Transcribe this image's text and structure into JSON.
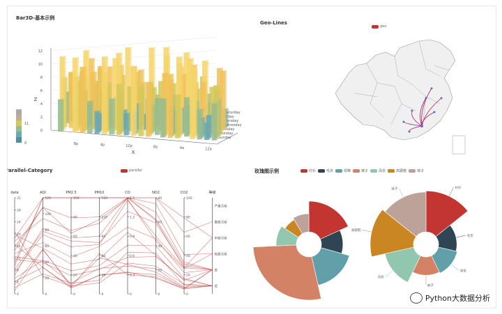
{
  "chart_data": [
    {
      "type": "bar3d",
      "title": "Bar3D-基本示例",
      "xlabel": "X",
      "zlabel": "Z",
      "x_ticks": [
        "8p",
        "4p",
        "12p",
        "8a",
        "4a",
        "12a"
      ],
      "z_ticks": [
        "0",
        "2",
        "4",
        "6",
        "8",
        "10",
        "12"
      ],
      "days": [
        "Sunday",
        "Monday",
        "Tuesday",
        "Wednesday",
        "Thursday",
        "Friday",
        "Saturday"
      ],
      "visual_map": {
        "max_label": "11",
        "min_label": "0",
        "colors": [
          "#f5d56b",
          "#f0c25a",
          "#d6c75b",
          "#97bc8f",
          "#6aa9b0",
          "#4f8fa3"
        ]
      },
      "grid": true
    },
    {
      "type": "geo-lines",
      "title": "Geo-Lines",
      "series_name": "geo",
      "series_color": "#c23531",
      "line_color": "#a31f5e",
      "point_color": "#5c6cc6"
    },
    {
      "type": "parallel",
      "title": "Parallel-Category",
      "series_name": "parallel",
      "series_color": "#c23531",
      "axes": [
        {
          "name": "data",
          "min": 0,
          "max": 31,
          "ticks": [
            "0",
            "4",
            "8",
            "12",
            "16",
            "20",
            "24",
            "28",
            "31"
          ]
        },
        {
          "name": "AQI",
          "min": 0,
          "max": 120,
          "ticks": [
            "0",
            "20",
            "40",
            "60",
            "80",
            "100",
            "120"
          ]
        },
        {
          "name": "PM2.5",
          "min": 0,
          "max": 100,
          "ticks": [
            "0",
            "20",
            "40",
            "60",
            "80",
            "100"
          ]
        },
        {
          "name": "PM10",
          "min": 0,
          "max": 150,
          "ticks": [
            "0",
            "30",
            "60",
            "90",
            "120",
            "150"
          ]
        },
        {
          "name": "CO",
          "min": 0,
          "max": 1.5,
          "ticks": [
            "0",
            "0.3",
            "0.6",
            "0.9",
            "1.2",
            "1.5"
          ]
        },
        {
          "name": "NO2",
          "min": 0,
          "max": 80,
          "ticks": [
            "0",
            "20",
            "40",
            "60",
            "80"
          ]
        },
        {
          "name": "CO2",
          "min": 0,
          "max": 100,
          "ticks": [
            "0",
            "20",
            "40",
            "60",
            "80",
            "100"
          ]
        },
        {
          "name": "等级",
          "categories": [
            "优",
            "良",
            "轻度污染",
            "中度污染",
            "重度污染",
            "严重污染"
          ]
        }
      ],
      "lines": [
        [
          1,
          55,
          9,
          56,
          0.46,
          18,
          6,
          "良"
        ],
        [
          2,
          25,
          11,
          21,
          0.65,
          34,
          9,
          "优"
        ],
        [
          3,
          56,
          7,
          63,
          0.3,
          14,
          5,
          "良"
        ],
        [
          4,
          33,
          7,
          29,
          0.33,
          16,
          6,
          "优"
        ],
        [
          5,
          42,
          24,
          44,
          0.76,
          40,
          16,
          "优"
        ],
        [
          6,
          82,
          58,
          90,
          1.77,
          68,
          33,
          "良"
        ],
        [
          7,
          74,
          49,
          77,
          1.46,
          48,
          27,
          "良"
        ],
        [
          8,
          78,
          55,
          80,
          1.29,
          59,
          29,
          "良"
        ],
        [
          9,
          267,
          216,
          280,
          4.8,
          108,
          64,
          "重度污染"
        ],
        [
          10,
          185,
          127,
          216,
          2.52,
          61,
          27,
          "中度污染"
        ],
        [
          11,
          39,
          19,
          38,
          0.57,
          31,
          15,
          "优"
        ],
        [
          12,
          41,
          11,
          40,
          0.43,
          21,
          7,
          "优"
        ],
        [
          13,
          64,
          38,
          74,
          1.04,
          46,
          22,
          "良"
        ],
        [
          14,
          108,
          79,
          120,
          1.7,
          75,
          41,
          "轻度污染"
        ],
        [
          15,
          108,
          63,
          116,
          1.48,
          44,
          26,
          "轻度污染"
        ],
        [
          16,
          33,
          6,
          29,
          0.34,
          13,
          5,
          "优"
        ],
        [
          17,
          94,
          66,
          110,
          1.54,
          62,
          31,
          "良"
        ],
        [
          18,
          186,
          142,
          192,
          3.88,
          93,
          79,
          "中度污染"
        ],
        [
          19,
          57,
          31,
          54,
          0.96,
          32,
          14,
          "良"
        ],
        [
          20,
          22,
          8,
          17,
          0.48,
          23,
          10,
          "优"
        ]
      ]
    },
    {
      "type": "pie",
      "title": "玫瑰图示例",
      "legend": [
        {
          "name": "衬衫",
          "color": "#c23531"
        },
        {
          "name": "毛衣",
          "color": "#2f4554"
        },
        {
          "name": "领带",
          "color": "#61a0a8"
        },
        {
          "name": "裤子",
          "color": "#d48265"
        },
        {
          "name": "风衣",
          "color": "#91c7ae"
        },
        {
          "name": "高跟鞋",
          "color": "#ca8622"
        },
        {
          "name": "袜子",
          "color": "#bda29a"
        }
      ],
      "left_values": [
        36,
        22,
        34,
        55,
        20,
        14,
        17
      ],
      "right_values": [
        60,
        20,
        22,
        20,
        40,
        64,
        58
      ],
      "right_labels_visible": [
        "衬衫",
        "毛衣",
        "领带",
        "裤子",
        "风衣",
        "高跟鞋",
        "袜子"
      ]
    }
  ],
  "watermark": {
    "text": "Python大数据分析"
  }
}
